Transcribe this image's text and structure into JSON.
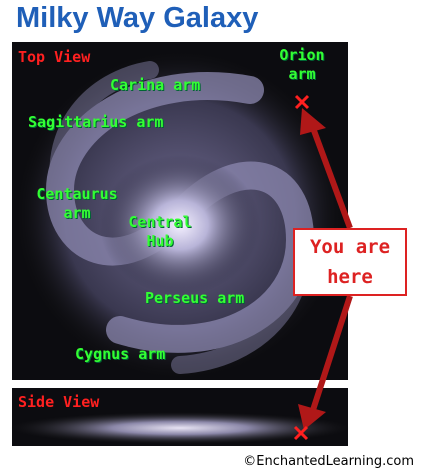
{
  "header": {
    "title": "Milky Way Galaxy"
  },
  "top_view": {
    "label": "Top View",
    "arms": [
      "Orion arm",
      "Carina arm",
      "Sagittarius arm",
      "Centaurus arm",
      "Central Hub",
      "Perseus arm",
      "Cygnus arm"
    ]
  },
  "callout": {
    "text": "You are here"
  },
  "side_view": {
    "label": "Side View"
  },
  "footer": {
    "credit": "©EnchantedLearning.com"
  }
}
